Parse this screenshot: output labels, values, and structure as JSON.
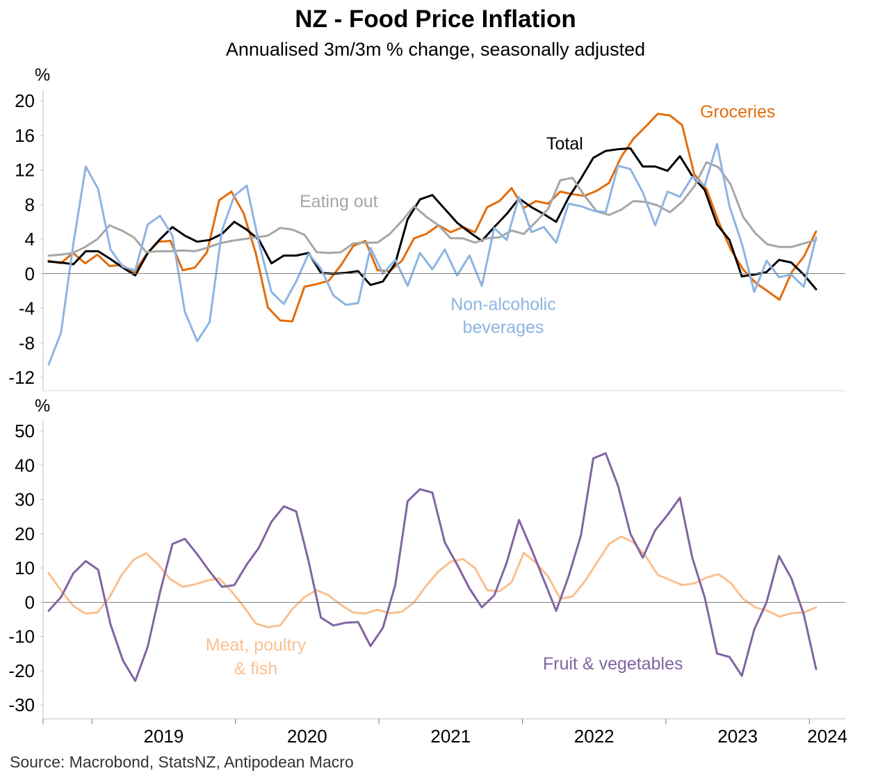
{
  "title": "NZ - Food Price Inflation",
  "subtitle": "Annualised 3m/3m % change, seasonally adjusted",
  "source": "Source: Macrobond, StatsNZ, Antipodean Macro",
  "chart_data": [
    {
      "type": "line",
      "ylabel": "%",
      "ylim": [
        -12,
        20
      ],
      "yticks": [
        20,
        16,
        12,
        8,
        4,
        0,
        -4,
        -8,
        -12
      ],
      "x_range": [
        2018.66,
        2024.25
      ],
      "x_tick_labels": [
        "2019",
        "2020",
        "2021",
        "2022",
        "2023",
        "2024"
      ],
      "series": [
        {
          "name": "Groceries",
          "color": "#E36C0A",
          "values": [
            1.5,
            1.2,
            2.4,
            1.2,
            2.2,
            0.9,
            1.0,
            0.1,
            2.2,
            3.7,
            3.8,
            0.4,
            0.7,
            2.5,
            8.5,
            9.5,
            7.0,
            2.4,
            -3.9,
            -5.4,
            -5.5,
            -1.5,
            -1.2,
            -0.8,
            1.0,
            3.2,
            3.8,
            0.4,
            0.3,
            1.5,
            4.1,
            4.6,
            5.6,
            4.8,
            5.4,
            4.8,
            7.7,
            8.4,
            9.9,
            7.6,
            8.4,
            8.1,
            9.5,
            9.2,
            9.0,
            9.6,
            10.5,
            13.5,
            15.6,
            17.0,
            18.5,
            18.3,
            17.2,
            11.5,
            9.8,
            6.0,
            2.8,
            0.5,
            -1.0,
            -2.0,
            -3.0,
            0.2,
            2.0,
            4.9
          ]
        },
        {
          "name": "Total",
          "color": "#000000",
          "values": [
            1.4,
            1.3,
            1.1,
            2.6,
            2.6,
            1.7,
            0.7,
            -0.2,
            2.4,
            4.0,
            5.4,
            4.4,
            3.7,
            3.9,
            4.6,
            6.0,
            5.1,
            3.9,
            1.2,
            2.1,
            2.1,
            2.4,
            0.1,
            0.0,
            0.1,
            0.3,
            -1.3,
            -0.9,
            1.2,
            6.3,
            8.6,
            9.1,
            7.5,
            5.9,
            4.8,
            3.8,
            5.4,
            6.9,
            8.7,
            7.7,
            6.9,
            6.0,
            8.8,
            11.0,
            13.4,
            14.2,
            14.4,
            14.5,
            12.4,
            12.4,
            11.9,
            13.6,
            11.3,
            9.7,
            5.7,
            3.9,
            -0.3,
            -0.1,
            0.2,
            1.6,
            1.3,
            -0.1,
            -1.8
          ]
        },
        {
          "name": "Eating out",
          "color": "#A6A6A6",
          "values": [
            2.1,
            2.2,
            2.4,
            3.1,
            4.0,
            5.6,
            5.0,
            4.2,
            2.5,
            2.6,
            2.6,
            2.7,
            2.6,
            3.0,
            3.5,
            3.8,
            4.0,
            4.2,
            4.4,
            5.3,
            5.1,
            4.5,
            2.5,
            2.4,
            2.5,
            3.5,
            3.6,
            3.6,
            4.6,
            6.1,
            7.8,
            6.6,
            5.6,
            4.1,
            4.1,
            3.6,
            4.1,
            4.2,
            5.0,
            4.6,
            6.0,
            7.5,
            10.8,
            11.1,
            9.0,
            7.2,
            6.8,
            7.4,
            8.4,
            8.3,
            7.9,
            7.1,
            8.3,
            10.1,
            12.9,
            12.3,
            10.3,
            6.6,
            4.7,
            3.4,
            3.1,
            3.1,
            3.5,
            3.9
          ]
        },
        {
          "name": "Non-alcoholic beverages",
          "color": "#8DB4E2",
          "values": [
            -10.5,
            -6.8,
            3.5,
            12.4,
            9.8,
            2.8,
            0.8,
            0.4,
            5.7,
            6.7,
            4.4,
            -4.4,
            -7.8,
            -5.6,
            5.0,
            9.0,
            10.2,
            3.5,
            -2.1,
            -3.5,
            -0.9,
            2.3,
            0.6,
            -2.5,
            -3.6,
            -3.4,
            3.0,
            0.0,
            1.6,
            -1.4,
            2.4,
            0.5,
            2.8,
            -0.2,
            2.1,
            -1.4,
            5.3,
            3.9,
            8.9,
            4.8,
            5.4,
            3.6,
            8.1,
            7.8,
            7.3,
            7.1,
            12.5,
            12.1,
            9.4,
            5.6,
            9.5,
            8.9,
            11.2,
            10.2,
            15.0,
            7.8,
            3.5,
            -2.1,
            1.5,
            -0.4,
            -0.1,
            -1.5,
            4.2
          ]
        }
      ],
      "annotations": [
        {
          "text": "Groceries",
          "color": "#E36C0A"
        },
        {
          "text": "Total",
          "color": "#000000"
        },
        {
          "text": "Eating out",
          "color": "#A6A6A6"
        },
        {
          "text": "Non-alcoholic",
          "color": "#8DB4E2"
        },
        {
          "text": "beverages",
          "color": "#8DB4E2"
        }
      ]
    },
    {
      "type": "line",
      "ylabel": "%",
      "ylim": [
        -30,
        50
      ],
      "yticks": [
        50,
        40,
        30,
        20,
        10,
        0,
        -10,
        -20,
        -30
      ],
      "x_range": [
        2018.66,
        2024.25
      ],
      "x_tick_labels": [
        "2019",
        "2020",
        "2021",
        "2022",
        "2023",
        "2024"
      ],
      "series": [
        {
          "name": "Meat, poultry & fish",
          "color": "#FAC090",
          "values": [
            8.5,
            3.5,
            -1.0,
            -3.3,
            -3.0,
            1.5,
            8.0,
            12.5,
            14.3,
            11.0,
            6.7,
            4.5,
            5.2,
            6.3,
            7.0,
            3.2,
            -1.2,
            -6.2,
            -7.3,
            -6.8,
            -2.0,
            1.5,
            3.5,
            2.0,
            -0.8,
            -3.0,
            -3.3,
            -2.2,
            -3.2,
            -2.8,
            0.0,
            4.8,
            9.0,
            11.8,
            12.6,
            10.0,
            3.5,
            3.2,
            5.8,
            14.4,
            11.5,
            7.5,
            1.0,
            1.7,
            6.0,
            11.5,
            17.0,
            19.2,
            17.5,
            13.5,
            8.0,
            6.5,
            5.0,
            5.5,
            7.2,
            8.2,
            5.6,
            1.0,
            -1.5,
            -2.5,
            -4.2,
            -3.2,
            -3.0,
            -1.5
          ]
        },
        {
          "name": "Fruit & vegetables",
          "color": "#8064A2",
          "values": [
            -2.5,
            1.5,
            8.5,
            12.0,
            9.5,
            -6.5,
            -17.0,
            -23.0,
            -13.0,
            3.0,
            17.0,
            18.5,
            14.0,
            9.0,
            4.5,
            5.0,
            11.0,
            16.0,
            23.5,
            28.0,
            26.5,
            12.0,
            -4.5,
            -6.8,
            -6.0,
            -5.8,
            -12.8,
            -7.5,
            5.0,
            29.5,
            33.0,
            32.0,
            17.5,
            11.0,
            4.0,
            -1.5,
            2.0,
            11.5,
            24.0,
            15.5,
            6.5,
            -2.5,
            7.5,
            19.5,
            42.0,
            43.5,
            34.0,
            20.0,
            13.0,
            21.0,
            25.5,
            30.5,
            13.0,
            1.5,
            -15.0,
            -16.0,
            -21.5,
            -8.0,
            0.0,
            13.5,
            7.0,
            -3.5,
            -19.5
          ]
        }
      ],
      "annotations": [
        {
          "text": "Meat, poultry",
          "color": "#FAC090"
        },
        {
          "text": "& fish",
          "color": "#FAC090"
        },
        {
          "text": "Fruit & vegetables",
          "color": "#8064A2"
        }
      ]
    }
  ]
}
